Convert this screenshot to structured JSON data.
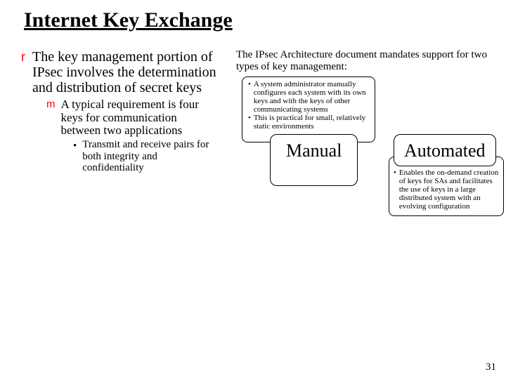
{
  "title": "Internet Key Exchange",
  "left": {
    "main": "The key management portion of IPsec involves the determination and distribution of secret keys",
    "sub": "A typical requirement is four keys for communication between two applications",
    "sub2": "Transmit and receive pairs for both integrity and confidentiality"
  },
  "right": {
    "intro": "The IPsec Architecture document mandates support for two types of key management:",
    "manual_desc1": "A system administrator manually configures each system with its own keys and with the keys of other communicating systems",
    "manual_desc2": "This is practical for small, relatively static environments",
    "manual_label": "Manual",
    "automated_label": "Automated",
    "auto_desc": "Enables the on-demand creation of keys for SAs and facilitates the use of keys in a large distributed system with an evolving configuration"
  },
  "markers": {
    "r": "r",
    "m": "m",
    "dot": "•"
  },
  "page_number": "31"
}
